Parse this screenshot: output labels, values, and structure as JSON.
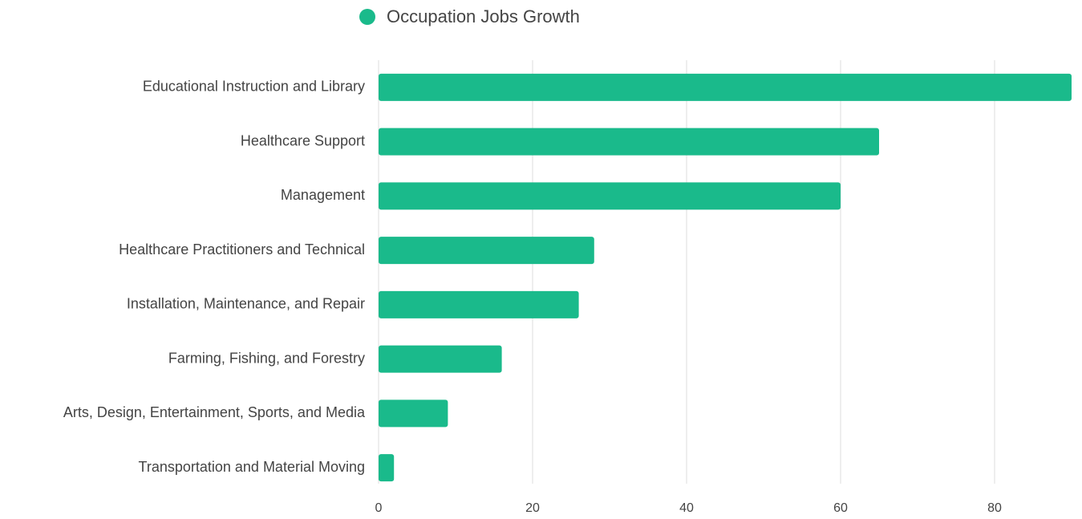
{
  "chart_data": {
    "type": "bar",
    "orientation": "horizontal",
    "categories": [
      "Educational Instruction and Library",
      "Healthcare Support",
      "Management",
      "Healthcare Practitioners and Technical",
      "Installation, Maintenance, and Repair",
      "Farming, Fishing, and Forestry",
      "Arts, Design, Entertainment, Sports, and Media",
      "Transportation and Material Moving"
    ],
    "series": [
      {
        "name": "Occupation Jobs Growth",
        "color": "#1aba8b",
        "values": [
          90,
          65,
          60,
          28,
          26,
          16,
          9,
          2
        ]
      }
    ],
    "xlim": [
      0,
      90
    ],
    "xticks": [
      0,
      20,
      40,
      60,
      80
    ],
    "grid": true,
    "legend": "top"
  }
}
